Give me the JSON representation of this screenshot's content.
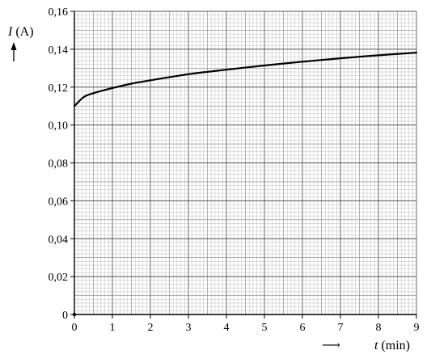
{
  "chart_data": {
    "type": "line",
    "title": "",
    "ylabel_var": "I",
    "ylabel_unit": "(A)",
    "xlabel_var": "t",
    "xlabel_unit": "(min)",
    "xlim": [
      0,
      9
    ],
    "ylim": [
      0,
      0.16
    ],
    "x_ticks": [
      0,
      1,
      2,
      3,
      4,
      5,
      6,
      7,
      8,
      9
    ],
    "x_tick_labels": [
      "0",
      "1",
      "2",
      "3",
      "4",
      "5",
      "6",
      "7",
      "8",
      "9"
    ],
    "y_ticks": [
      0,
      0.02,
      0.04,
      0.06,
      0.08,
      0.1,
      0.12,
      0.14,
      0.16
    ],
    "y_tick_labels": [
      "0",
      "0,02",
      "0,04",
      "0,06",
      "0,08",
      "0,10",
      "0,12",
      "0,14",
      "0,16"
    ],
    "grid": "mm-paper",
    "series": [
      {
        "x": [
          0,
          0.25,
          0.5,
          1,
          1.5,
          2,
          3,
          4,
          5,
          6,
          7,
          8,
          9
        ],
        "y": [
          0.11,
          0.1148,
          0.1168,
          0.1195,
          0.1218,
          0.1236,
          0.1268,
          0.1292,
          0.1314,
          0.1334,
          0.1352,
          0.1368,
          0.1382
        ]
      }
    ],
    "color": "#000000"
  }
}
